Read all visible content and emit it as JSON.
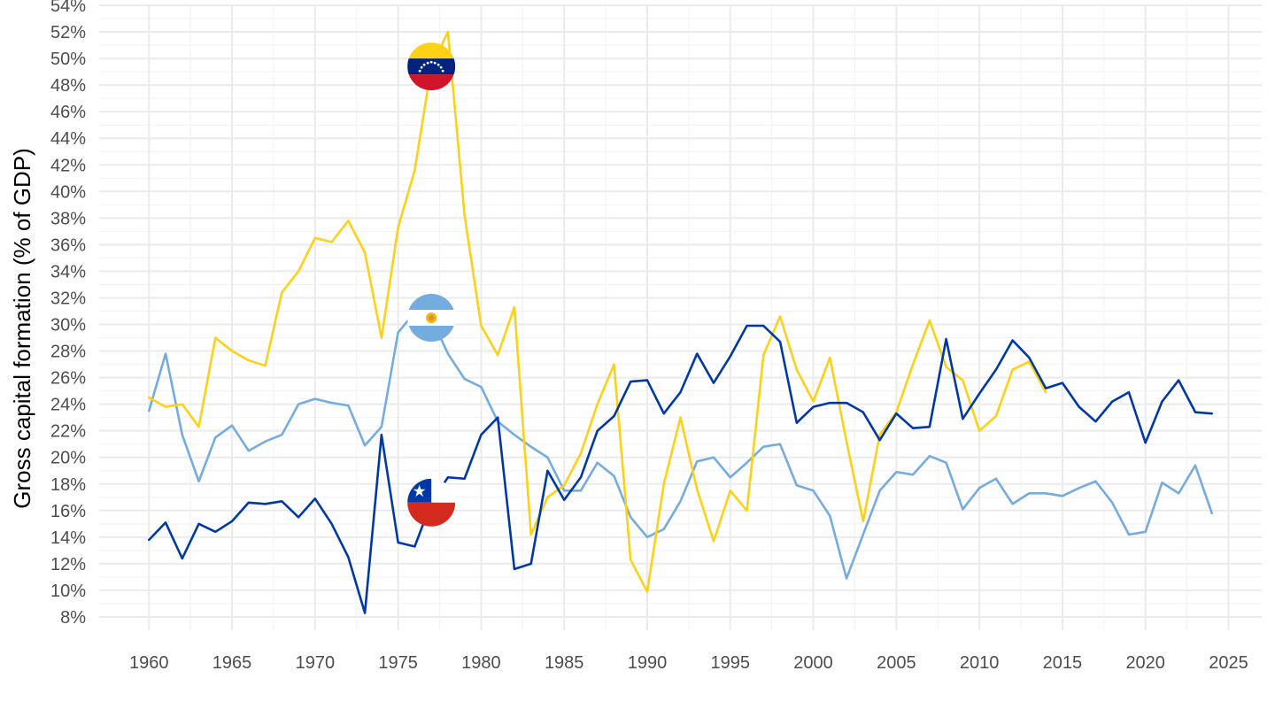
{
  "chart_data": {
    "type": "line",
    "title": "",
    "xlabel": "",
    "ylabel": "Gross capital formation (% of GDP)",
    "xlim": [
      1957,
      2027
    ],
    "ylim": [
      7,
      54
    ],
    "x_ticks": [
      1960,
      1965,
      1970,
      1975,
      1980,
      1985,
      1990,
      1995,
      2000,
      2005,
      2010,
      2015,
      2020,
      2025
    ],
    "x_tick_labels": [
      "1960",
      "1965",
      "1970",
      "1975",
      "1980",
      "1985",
      "1990",
      "1995",
      "2000",
      "2005",
      "2010",
      "2015",
      "2020",
      "2025"
    ],
    "y_ticks": [
      8,
      10,
      12,
      14,
      16,
      18,
      20,
      22,
      24,
      26,
      28,
      30,
      32,
      34,
      36,
      38,
      40,
      42,
      44,
      46,
      48,
      50,
      52,
      54
    ],
    "y_tick_labels": [
      "8%",
      "10%",
      "12%",
      "14%",
      "16%",
      "18%",
      "20%",
      "22%",
      "24%",
      "26%",
      "28%",
      "30%",
      "32%",
      "34%",
      "36%",
      "38%",
      "40%",
      "42%",
      "44%",
      "46%",
      "48%",
      "50%",
      "52%",
      "54%"
    ],
    "grid": true,
    "legend": "none",
    "series": [
      {
        "flag": "argentina-flag-icon",
        "color": "#74acdf",
        "x": [
          1960,
          1961,
          1962,
          1963,
          1964,
          1965,
          1966,
          1967,
          1968,
          1969,
          1970,
          1971,
          1972,
          1973,
          1974,
          1975,
          1976,
          1977,
          1978,
          1979,
          1980,
          1981,
          1982,
          1983,
          1984,
          1985,
          1986,
          1987,
          1988,
          1989,
          1990,
          1991,
          1992,
          1993,
          1994,
          1995,
          1996,
          1997,
          1998,
          1999,
          2000,
          2001,
          2002,
          2003,
          2004,
          2005,
          2006,
          2007,
          2008,
          2009,
          2010,
          2011,
          2012,
          2013,
          2014,
          2015,
          2016,
          2017,
          2018,
          2019,
          2020,
          2021,
          2022,
          2023,
          2024
        ],
        "values": [
          23.5,
          27.8,
          21.7,
          18.2,
          21.5,
          22.4,
          20.5,
          21.2,
          21.7,
          24.0,
          24.4,
          24.1,
          23.9,
          20.9,
          22.3,
          29.4,
          30.9,
          30.5,
          27.8,
          25.9,
          25.3,
          22.7,
          21.7,
          20.8,
          20.0,
          17.5,
          17.5,
          19.6,
          18.6,
          15.5,
          14.0,
          14.6,
          16.7,
          19.7,
          20.0,
          18.5,
          19.6,
          20.8,
          21.0,
          17.9,
          17.5,
          15.6,
          10.9,
          14.2,
          17.5,
          18.9,
          18.7,
          20.1,
          19.6,
          16.1,
          17.7,
          18.4,
          16.5,
          17.3,
          17.3,
          17.1,
          17.7,
          18.2,
          16.6,
          14.2,
          14.4,
          18.1,
          17.3,
          19.4,
          15.8
        ]
      },
      {
        "flag": "venezuela-flag-icon",
        "color": "#fcd116",
        "x": [
          1960,
          1961,
          1962,
          1963,
          1964,
          1965,
          1966,
          1967,
          1968,
          1969,
          1970,
          1971,
          1972,
          1973,
          1974,
          1975,
          1976,
          1977,
          1978,
          1979,
          1980,
          1981,
          1982,
          1983,
          1984,
          1985,
          1986,
          1987,
          1988,
          1989,
          1990,
          1991,
          1992,
          1993,
          1994,
          1995,
          1996,
          1997,
          1998,
          1999,
          2000,
          2001,
          2002,
          2003,
          2004,
          2005,
          2006,
          2007,
          2008,
          2009,
          2010,
          2011,
          2012,
          2013,
          2014
        ],
        "values": [
          24.5,
          23.8,
          24.0,
          22.3,
          29.0,
          28.0,
          27.3,
          26.9,
          32.4,
          34.0,
          36.5,
          36.2,
          37.8,
          35.4,
          29.0,
          37.3,
          41.6,
          49.4,
          52.0,
          38.2,
          29.9,
          27.7,
          31.3,
          14.2,
          17.0,
          17.9,
          20.3,
          24.0,
          27.0,
          12.3,
          9.9,
          18.0,
          23.0,
          17.6,
          13.7,
          17.5,
          16.0,
          27.7,
          30.6,
          26.6,
          24.2,
          27.5,
          21.2,
          15.2,
          21.7,
          23.4,
          27.0,
          30.3,
          26.8,
          25.8,
          22.0,
          23.1,
          26.6,
          27.2,
          24.9
        ]
      },
      {
        "flag": "chile-flag-icon",
        "color": "#0039a6",
        "x": [
          1960,
          1961,
          1962,
          1963,
          1964,
          1965,
          1966,
          1967,
          1968,
          1969,
          1970,
          1971,
          1972,
          1973,
          1974,
          1975,
          1976,
          1977,
          1978,
          1979,
          1980,
          1981,
          1982,
          1983,
          1984,
          1985,
          1986,
          1987,
          1988,
          1989,
          1990,
          1991,
          1992,
          1993,
          1994,
          1995,
          1996,
          1997,
          1998,
          1999,
          2000,
          2001,
          2002,
          2003,
          2004,
          2005,
          2006,
          2007,
          2008,
          2009,
          2010,
          2011,
          2012,
          2013,
          2014,
          2015,
          2016,
          2017,
          2018,
          2019,
          2020,
          2021,
          2022,
          2023,
          2024
        ],
        "values": [
          13.8,
          15.1,
          12.4,
          15.0,
          14.4,
          15.2,
          16.6,
          16.5,
          16.7,
          15.5,
          16.9,
          15.0,
          12.5,
          8.3,
          21.7,
          13.6,
          13.3,
          16.6,
          18.5,
          18.4,
          21.7,
          23.0,
          11.6,
          12.0,
          19.0,
          16.8,
          18.5,
          22.0,
          23.1,
          25.7,
          25.8,
          23.3,
          24.9,
          27.8,
          25.6,
          27.6,
          29.9,
          29.9,
          28.7,
          22.6,
          23.8,
          24.1,
          24.1,
          23.4,
          21.3,
          23.3,
          22.2,
          22.3,
          28.9,
          22.9,
          24.8,
          26.6,
          28.8,
          27.5,
          25.2,
          25.6,
          23.8,
          22.7,
          24.2,
          24.9,
          21.1,
          24.2,
          25.8,
          23.4,
          23.3
        ]
      }
    ]
  }
}
